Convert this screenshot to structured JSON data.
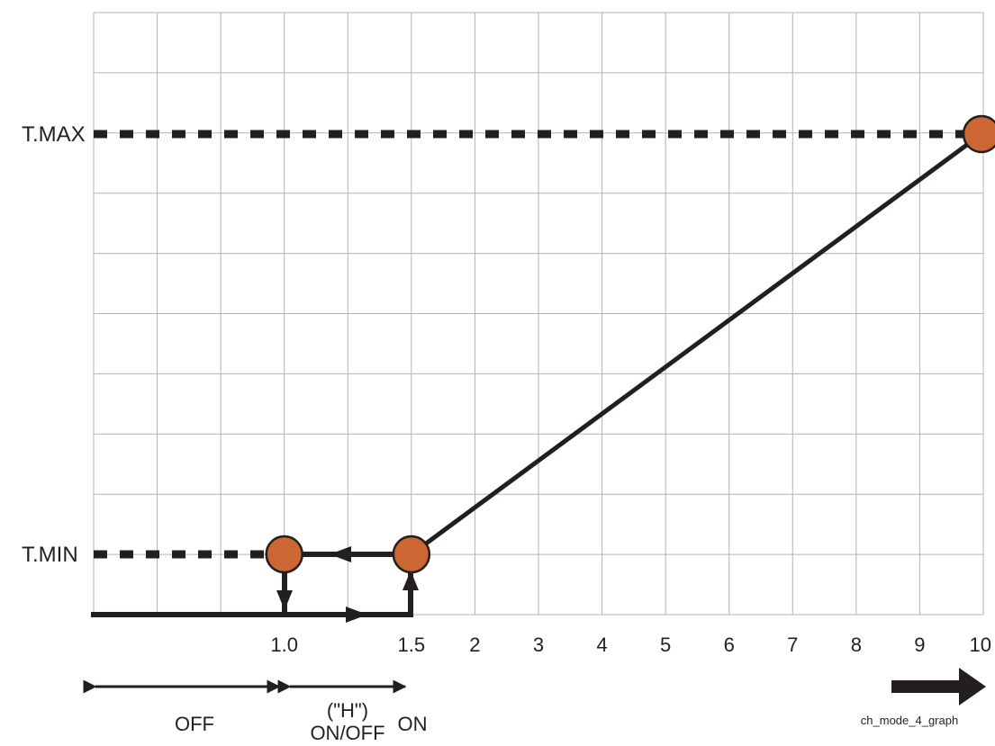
{
  "chart_data": {
    "type": "line",
    "title": "",
    "xlabel": "",
    "ylabel": "",
    "x_ticks": [
      "1.0",
      "1.5",
      "2",
      "3",
      "4",
      "5",
      "6",
      "7",
      "8",
      "9",
      "10"
    ],
    "y_labels": {
      "max": "T.MAX",
      "min": "T.MIN"
    },
    "series": [
      {
        "points": [
          {
            "x": "1.5",
            "y": "T.MIN"
          },
          {
            "x": "10",
            "y": "T.MAX"
          }
        ]
      }
    ],
    "hysteresis": {
      "off_point": "1.0",
      "on_point": "1.5",
      "arrows": [
        "baseline-right",
        "up-at-1.5",
        "left-at-T.MIN",
        "down-at-1.0"
      ]
    },
    "zones": [
      {
        "label": "OFF",
        "from": "start",
        "to": "1.0"
      },
      {
        "label": "(\"H\")",
        "label2": "ON/OFF",
        "from": "1.0",
        "to": "1.5"
      },
      {
        "label": "ON",
        "from": "1.5",
        "to": "end"
      }
    ],
    "grid": true,
    "colors": {
      "line": "#231f20",
      "marker": "#cc6633",
      "grid": "#b3b3b3"
    }
  },
  "caption": "ch_mode_4_graph"
}
